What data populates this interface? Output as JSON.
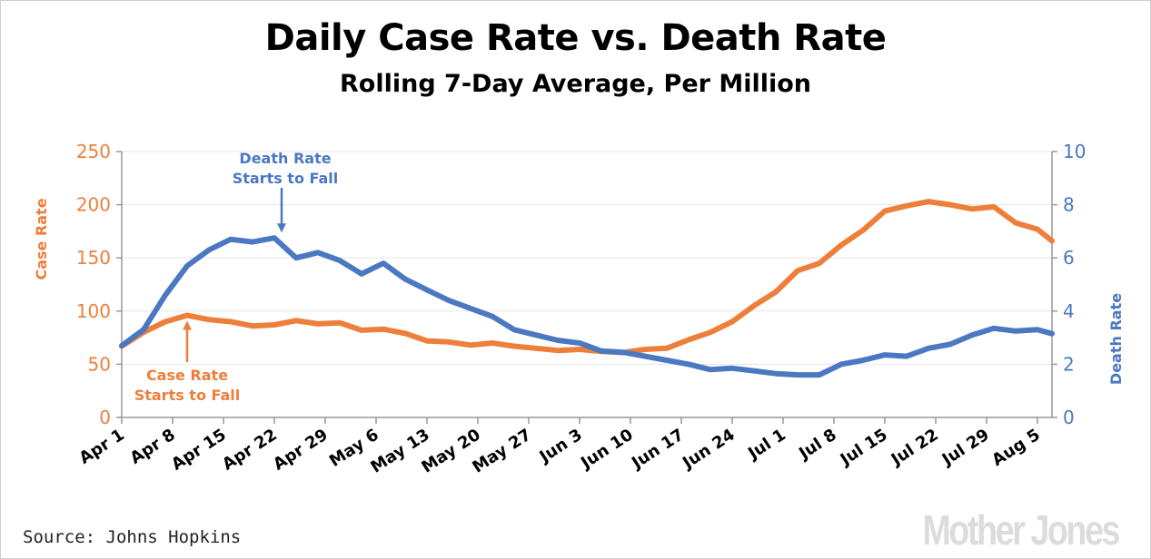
{
  "header": {
    "title": "Daily Case Rate vs. Death Rate",
    "subtitle": "Rolling 7-Day Average, Per Million"
  },
  "footer": {
    "source": "Source: Johns Hopkins",
    "brand": "Mother Jones"
  },
  "colors": {
    "case": "#ee7f3a",
    "death": "#4a78c2",
    "grid": "#e6e6e6",
    "axis": "#999999"
  },
  "chart_data": {
    "type": "line",
    "title": "Daily Case Rate vs. Death Rate",
    "subtitle": "Rolling 7-Day Average, Per Million",
    "x_ticks": [
      "Apr 1",
      "Apr 8",
      "Apr 15",
      "Apr 22",
      "Apr 29",
      "May 6",
      "May 13",
      "May 20",
      "May 27",
      "Jun 3",
      "Jun 10",
      "Jun 17",
      "Jun 24",
      "Jul 1",
      "Jul 8",
      "Jul 15",
      "Jul 22",
      "Jul 29",
      "Aug 5"
    ],
    "x_range": [
      "Apr 1",
      "Aug 7"
    ],
    "y_left": {
      "label": "Case Rate",
      "ticks": [
        0,
        50,
        100,
        150,
        200,
        250
      ],
      "range": [
        0,
        250
      ]
    },
    "y_right": {
      "label": "Death Rate",
      "ticks": [
        0,
        2,
        4,
        6,
        8,
        10
      ],
      "range": [
        0,
        10
      ]
    },
    "grid": "horizontal",
    "series": [
      {
        "name": "Case Rate",
        "axis": "left",
        "points": [
          [
            "Apr 1",
            67
          ],
          [
            "Apr 4",
            80
          ],
          [
            "Apr 7",
            90
          ],
          [
            "Apr 10",
            96
          ],
          [
            "Apr 13",
            92
          ],
          [
            "Apr 16",
            90
          ],
          [
            "Apr 19",
            86
          ],
          [
            "Apr 22",
            87
          ],
          [
            "Apr 25",
            91
          ],
          [
            "Apr 28",
            88
          ],
          [
            "May 1",
            89
          ],
          [
            "May 4",
            82
          ],
          [
            "May 7",
            83
          ],
          [
            "May 10",
            79
          ],
          [
            "May 13",
            72
          ],
          [
            "May 16",
            71
          ],
          [
            "May 19",
            68
          ],
          [
            "May 22",
            70
          ],
          [
            "May 25",
            67
          ],
          [
            "May 28",
            65
          ],
          [
            "May 31",
            63
          ],
          [
            "Jun 3",
            64
          ],
          [
            "Jun 6",
            62
          ],
          [
            "Jun 9",
            61
          ],
          [
            "Jun 12",
            64
          ],
          [
            "Jun 15",
            65
          ],
          [
            "Jun 18",
            73
          ],
          [
            "Jun 21",
            80
          ],
          [
            "Jun 24",
            90
          ],
          [
            "Jun 27",
            105
          ],
          [
            "Jun 30",
            118
          ],
          [
            "Jul 3",
            138
          ],
          [
            "Jul 6",
            145
          ],
          [
            "Jul 9",
            162
          ],
          [
            "Jul 12",
            176
          ],
          [
            "Jul 15",
            194
          ],
          [
            "Jul 18",
            199
          ],
          [
            "Jul 21",
            203
          ],
          [
            "Jul 24",
            200
          ],
          [
            "Jul 27",
            196
          ],
          [
            "Jul 30",
            198
          ],
          [
            "Aug 2",
            183
          ],
          [
            "Aug 5",
            177
          ],
          [
            "Aug 7",
            166
          ]
        ]
      },
      {
        "name": "Death Rate",
        "axis": "right",
        "points": [
          [
            "Apr 1",
            2.7
          ],
          [
            "Apr 4",
            3.3
          ],
          [
            "Apr 7",
            4.6
          ],
          [
            "Apr 10",
            5.7
          ],
          [
            "Apr 13",
            6.3
          ],
          [
            "Apr 16",
            6.7
          ],
          [
            "Apr 19",
            6.6
          ],
          [
            "Apr 22",
            6.75
          ],
          [
            "Apr 25",
            6.0
          ],
          [
            "Apr 28",
            6.2
          ],
          [
            "May 1",
            5.9
          ],
          [
            "May 4",
            5.4
          ],
          [
            "May 7",
            5.8
          ],
          [
            "May 10",
            5.2
          ],
          [
            "May 13",
            4.8
          ],
          [
            "May 16",
            4.4
          ],
          [
            "May 19",
            4.1
          ],
          [
            "May 22",
            3.8
          ],
          [
            "May 25",
            3.3
          ],
          [
            "May 28",
            3.1
          ],
          [
            "May 31",
            2.9
          ],
          [
            "Jun 3",
            2.8
          ],
          [
            "Jun 6",
            2.5
          ],
          [
            "Jun 9",
            2.45
          ],
          [
            "Jun 12",
            2.3
          ],
          [
            "Jun 15",
            2.15
          ],
          [
            "Jun 18",
            2.0
          ],
          [
            "Jun 21",
            1.8
          ],
          [
            "Jun 24",
            1.85
          ],
          [
            "Jun 27",
            1.75
          ],
          [
            "Jun 30",
            1.65
          ],
          [
            "Jul 3",
            1.6
          ],
          [
            "Jul 6",
            1.6
          ],
          [
            "Jul 9",
            2.0
          ],
          [
            "Jul 12",
            2.15
          ],
          [
            "Jul 15",
            2.35
          ],
          [
            "Jul 18",
            2.3
          ],
          [
            "Jul 21",
            2.6
          ],
          [
            "Jul 24",
            2.75
          ],
          [
            "Jul 27",
            3.1
          ],
          [
            "Jul 30",
            3.35
          ],
          [
            "Aug 2",
            3.25
          ],
          [
            "Aug 5",
            3.3
          ],
          [
            "Aug 7",
            3.15
          ]
        ]
      }
    ],
    "annotations": [
      {
        "series": "Case Rate",
        "lines": [
          "Case Rate",
          "Starts to Fall"
        ],
        "x": "Apr 10"
      },
      {
        "series": "Death Rate",
        "lines": [
          "Death Rate",
          "Starts to Fall"
        ],
        "x": "Apr 23"
      }
    ]
  }
}
